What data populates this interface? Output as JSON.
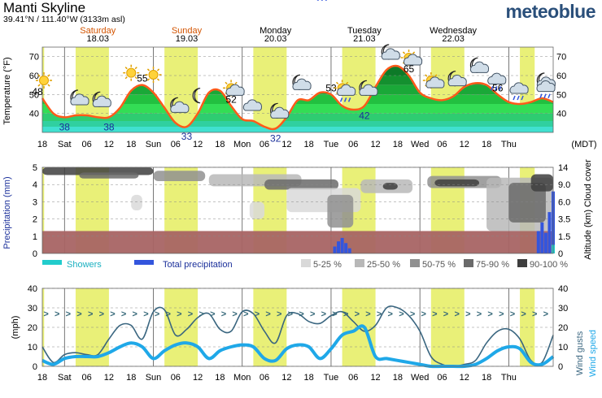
{
  "header": {
    "title": "Manti Skyline",
    "coords": "39.41°N / 111.40°W (3133m asl)",
    "brand": "meteoblue"
  },
  "colors": {
    "day_band": "#e9f078",
    "temp_line": "#ff5a1a",
    "weekend": "#d35400",
    "precip": "#3355dd",
    "showers": "#22cccc",
    "wind_speed": "#1fa8e8",
    "wind_gusts": "#3a6680",
    "frozen": "#a86464"
  },
  "days": [
    {
      "name": "Saturday",
      "date": "18.03",
      "weekend": true
    },
    {
      "name": "Sunday",
      "date": "19.03",
      "weekend": true
    },
    {
      "name": "Monday",
      "date": "20.03",
      "weekend": false
    },
    {
      "name": "Tuesday",
      "date": "21.03",
      "weekend": false
    },
    {
      "name": "Wednesday",
      "date": "22.03",
      "weekend": false
    }
  ],
  "x_ticks": [
    "18",
    "Sat",
    "06",
    "12",
    "18",
    "Sun",
    "06",
    "12",
    "18",
    "Mon",
    "06",
    "12",
    "18",
    "Tue",
    "06",
    "12",
    "18",
    "Wed",
    "06",
    "12",
    "18",
    "Thu"
  ],
  "timezone_label": "(MDT)",
  "chart_data": [
    {
      "type": "area",
      "ylabel": "Temperature (°F)",
      "ylim": [
        30,
        75
      ],
      "y_ticks": [
        40,
        50,
        60,
        70
      ],
      "x_hours_from_start": [
        0,
        3,
        6,
        9,
        12,
        15,
        18,
        21,
        24,
        27,
        30,
        33,
        36,
        39,
        42,
        45,
        48,
        51,
        54,
        57,
        60,
        63,
        66,
        69,
        72,
        75,
        78,
        81,
        84,
        87,
        90,
        93,
        96,
        99,
        102,
        105,
        108,
        111,
        114,
        117,
        120,
        123,
        126,
        129,
        132,
        135,
        138
      ],
      "temperature": [
        48,
        40,
        38,
        39,
        39,
        38,
        38,
        43,
        52,
        55,
        51,
        43,
        35,
        33,
        40,
        51,
        52,
        44,
        37,
        36,
        33,
        32,
        38,
        47,
        47,
        51,
        50,
        44,
        42,
        44,
        54,
        63,
        65,
        60,
        51,
        48,
        47,
        49,
        54,
        56,
        55,
        50,
        46,
        45,
        46,
        48,
        46
      ],
      "labels": [
        {
          "hour": 0,
          "text": "48",
          "kind": "max"
        },
        {
          "hour": 6,
          "text": "38",
          "kind": "min"
        },
        {
          "hour": 18,
          "text": "38",
          "kind": "min"
        },
        {
          "hour": 27,
          "text": "55",
          "kind": "max"
        },
        {
          "hour": 39,
          "text": "33",
          "kind": "min"
        },
        {
          "hour": 51,
          "text": "52",
          "kind": "max"
        },
        {
          "hour": 63,
          "text": "32",
          "kind": "min"
        },
        {
          "hour": 78,
          "text": "53",
          "kind": "max"
        },
        {
          "hour": 87,
          "text": "42",
          "kind": "min"
        },
        {
          "hour": 99,
          "text": "65",
          "kind": "max"
        },
        {
          "hour": 123,
          "text": "56",
          "kind": "max"
        }
      ],
      "weather_icons": [
        {
          "hour": 0,
          "icon": "sun-icon"
        },
        {
          "hour": 9,
          "icon": "moon-cloud-icon"
        },
        {
          "hour": 15,
          "icon": "moon-cloud-icon"
        },
        {
          "hour": 24,
          "icon": "sun-icon"
        },
        {
          "hour": 30,
          "icon": "sun-icon"
        },
        {
          "hour": 36,
          "icon": "moon-cloud-icon"
        },
        {
          "hour": 42,
          "icon": "moon-icon"
        },
        {
          "hour": 51,
          "icon": "sun-cloud-icon"
        },
        {
          "hour": 57,
          "icon": "cloud-icon"
        },
        {
          "hour": 63,
          "icon": "moon-cloud-icon"
        },
        {
          "hour": 69,
          "icon": "moon-cloud-icon"
        },
        {
          "hour": 76,
          "icon": "rain-cloud-icon"
        },
        {
          "hour": 81,
          "icon": "sun-rain-icon"
        },
        {
          "hour": 87,
          "icon": "moon-cloud-icon"
        },
        {
          "hour": 93,
          "icon": "moon-cloud-icon"
        },
        {
          "hour": 99,
          "icon": "sun-cloud-icon"
        },
        {
          "hour": 105,
          "icon": "sun-cloud-icon"
        },
        {
          "hour": 111,
          "icon": "moon-cloud-icon"
        },
        {
          "hour": 117,
          "icon": "moon-cloud-icon"
        },
        {
          "hour": 123,
          "icon": "rain-cloud-icon"
        },
        {
          "hour": 129,
          "icon": "rain-cloud-icon"
        },
        {
          "hour": 135,
          "icon": "moon-cloud-icon"
        },
        {
          "hour": 138,
          "icon": "rain-cloud-icon"
        }
      ]
    },
    {
      "type": "bar",
      "ylabel_left": "Precipitation (mm)",
      "ylabel_right": "Altitude (km) Cloud cover",
      "y_ticks_left": [
        0,
        1,
        2,
        3,
        4,
        5
      ],
      "y_ticks_right": [
        "0",
        "1.5",
        "3.5",
        "6.0",
        "9.0",
        "14"
      ],
      "x_hours_from_start": [
        79,
        80,
        81,
        82,
        83,
        134,
        135,
        136,
        137,
        138
      ],
      "total_precipitation": [
        0.4,
        0.7,
        0.9,
        0.6,
        0.3,
        1.3,
        1.8,
        1.2,
        2.4,
        3.6
      ],
      "showers": [
        0,
        0,
        0,
        0,
        0,
        0,
        0,
        0,
        0,
        0.5
      ],
      "legend": [
        {
          "key": "showers",
          "label": "Showers"
        },
        {
          "key": "total",
          "label": "Total precipitation"
        },
        {
          "key": "cc1",
          "label": "5-25 %",
          "color": "#d9d9d9"
        },
        {
          "key": "cc2",
          "label": "25-50 %",
          "color": "#b8b8b8"
        },
        {
          "key": "cc3",
          "label": "50-75 %",
          "color": "#909090"
        },
        {
          "key": "cc4",
          "label": "75-90 %",
          "color": "#6a6a6a"
        },
        {
          "key": "cc5",
          "label": "90-100 %",
          "color": "#3e3e3e"
        }
      ]
    },
    {
      "type": "line",
      "ylabel_left": "(mph)",
      "ylabel_right": "Wind gusts  Wind speed",
      "ylim": [
        0,
        40
      ],
      "y_ticks": [
        0,
        10,
        20,
        30,
        40
      ],
      "x_hours_from_start": [
        0,
        3,
        6,
        9,
        12,
        15,
        18,
        21,
        24,
        27,
        30,
        33,
        36,
        39,
        42,
        45,
        48,
        51,
        54,
        57,
        60,
        63,
        66,
        69,
        72,
        75,
        78,
        81,
        84,
        87,
        90,
        93,
        96,
        99,
        102,
        105,
        108,
        111,
        114,
        117,
        120,
        123,
        126,
        129,
        132,
        135,
        138
      ],
      "series": [
        {
          "name": "Wind gusts",
          "values": [
            10,
            2,
            6,
            7,
            6,
            6,
            14,
            21,
            21,
            14,
            28,
            29,
            16,
            19,
            25,
            27,
            19,
            18,
            28,
            27,
            18,
            12,
            26,
            27,
            23,
            22,
            26,
            28,
            23,
            18,
            21,
            30,
            30,
            26,
            18,
            5,
            1,
            0,
            1,
            3,
            12,
            18,
            19,
            14,
            3,
            2,
            16
          ]
        },
        {
          "name": "Wind speed",
          "values": [
            3,
            1,
            4,
            5,
            5,
            5,
            7,
            10,
            12,
            10,
            4,
            8,
            11,
            12,
            10,
            4,
            8,
            10,
            11,
            10,
            4,
            3,
            9,
            11,
            10,
            4,
            9,
            16,
            18,
            20,
            5,
            4,
            3,
            2,
            1,
            0,
            0,
            0,
            0,
            1,
            4,
            8,
            10,
            9,
            2,
            1,
            5
          ]
        }
      ],
      "direction_arrows": ">"
    }
  ]
}
